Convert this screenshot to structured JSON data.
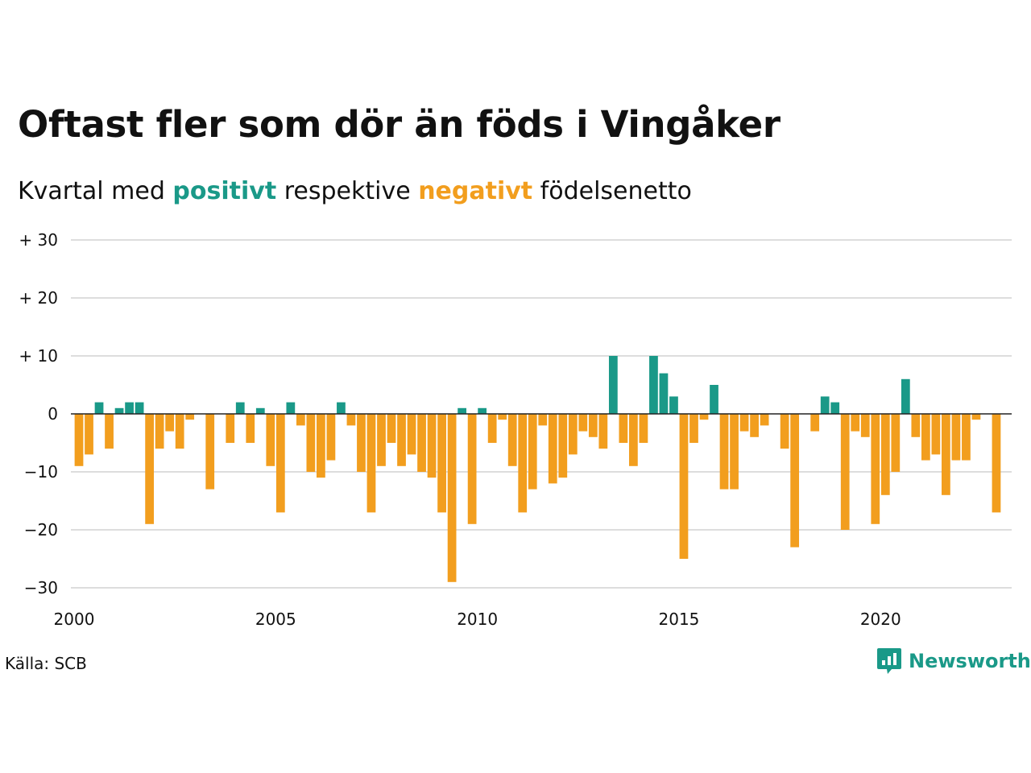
{
  "title": "Oftast fler som dör än föds i Vingåker",
  "subtitle": {
    "prefix": "Kvartal med ",
    "positive_word": "positivt",
    "middle": " respektive ",
    "negative_word": "negativt",
    "suffix": " födelsenetto"
  },
  "source": "Källa: SCB",
  "brand": {
    "name": "Newsworthy",
    "icon": "newsworthy-logo-icon"
  },
  "colors": {
    "positive": "#1a9988",
    "negative": "#f29e1e",
    "grid": "#dddddd",
    "zero": "#222222"
  },
  "chart_data": {
    "type": "bar",
    "title": "Oftast fler som dör än föds i Vingåker",
    "subtitle": "Kvartal med positivt respektive negativt födelsenetto",
    "ylim": [
      -30,
      30
    ],
    "xlim": [
      2000,
      2023.25
    ],
    "yticks": [
      {
        "value": 30,
        "label": "+ 30"
      },
      {
        "value": 20,
        "label": "+ 20"
      },
      {
        "value": 10,
        "label": "+ 10"
      },
      {
        "value": 0,
        "label": "0"
      },
      {
        "value": -10,
        "label": "−10"
      },
      {
        "value": -20,
        "label": "−20"
      },
      {
        "value": -30,
        "label": "−30"
      }
    ],
    "xticks": [
      {
        "value": 2000,
        "label": "2000"
      },
      {
        "value": 2005,
        "label": "2005"
      },
      {
        "value": 2010,
        "label": "2010"
      },
      {
        "value": 2015,
        "label": "2015"
      },
      {
        "value": 2020,
        "label": "2020"
      }
    ],
    "grid": true,
    "start": "2000-Q1",
    "frequency": "quarterly",
    "values": [
      -9,
      -7,
      2,
      -6,
      1,
      2,
      2,
      -19,
      -6,
      -3,
      -6,
      -1,
      0,
      -13,
      0,
      -5,
      2,
      -5,
      1,
      -9,
      -17,
      2,
      -2,
      -10,
      -11,
      -8,
      2,
      -2,
      -10,
      -17,
      -9,
      -5,
      -9,
      -7,
      -10,
      -11,
      -17,
      -29,
      1,
      -19,
      1,
      -5,
      -1,
      -9,
      -17,
      -13,
      -2,
      -12,
      -11,
      -7,
      -3,
      -4,
      -6,
      10,
      -5,
      -9,
      -5,
      10,
      7,
      3,
      -25,
      -5,
      -1,
      5,
      -13,
      -13,
      -3,
      -4,
      -2,
      0,
      -6,
      -23,
      0,
      -3,
      3,
      2,
      -20,
      -3,
      -4,
      -19,
      -14,
      -10,
      6,
      -4,
      -8,
      -7,
      -14,
      -8,
      -8,
      -1,
      0,
      -17
    ]
  }
}
